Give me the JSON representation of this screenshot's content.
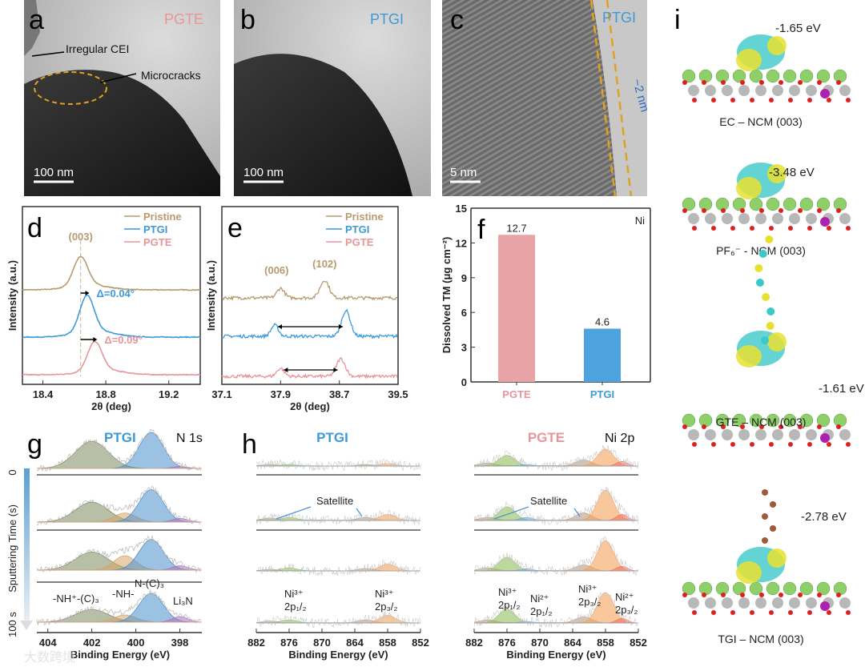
{
  "colors": {
    "pristine": "#b89a6e",
    "ptgi": "#3d9ad9",
    "pgte": "#e8959a",
    "bar_pgte": "#e8a3a6",
    "bar_ptgi": "#4ea3df"
  },
  "panel_a": {
    "letter": "a",
    "sample": "PGTE",
    "annot1": "Irregular CEI",
    "annot2": "Microcracks",
    "scale": "100 nm"
  },
  "panel_b": {
    "letter": "b",
    "sample": "PTGI",
    "scale": "100 nm"
  },
  "panel_c": {
    "letter": "c",
    "sample": "PTGI",
    "thickness": "~2 nm",
    "scale": "5 nm"
  },
  "chart_data": [
    {
      "id": "d",
      "type": "line",
      "letter": "d",
      "xlabel": "2θ (deg)",
      "ylabel": "Intensity (a.u.)",
      "xlim": [
        18.27,
        19.4
      ],
      "xticks": [
        "18.4",
        "18.8",
        "19.2"
      ],
      "xtick_values": [
        18.4,
        18.8,
        19.2
      ],
      "peak_label": "(003)",
      "series": [
        {
          "name": "Pristine",
          "peak": 18.64
        },
        {
          "name": "PTGI",
          "peak": 18.68,
          "shift": "Δ=0.04°"
        },
        {
          "name": "PGTE",
          "peak": 18.73,
          "shift": "Δ=0.09°"
        }
      ]
    },
    {
      "id": "e",
      "type": "line",
      "letter": "e",
      "xlabel": "2θ (deg)",
      "ylabel": "Intensity (a.u.)",
      "xlim": [
        37.1,
        39.5
      ],
      "xticks": [
        "37.1",
        "37.9",
        "38.7",
        "39.5"
      ],
      "xtick_values": [
        37.1,
        37.9,
        38.7,
        39.5
      ],
      "peak_labels": [
        "(006)",
        "(102)"
      ],
      "series": [
        {
          "name": "Pristine",
          "peaks": [
            37.9,
            38.5
          ]
        },
        {
          "name": "PTGI",
          "peaks": [
            37.82,
            38.79
          ]
        },
        {
          "name": "PGTE",
          "peaks": [
            37.9,
            38.72
          ]
        }
      ]
    },
    {
      "id": "f",
      "type": "bar",
      "letter": "f",
      "element": "Ni",
      "ylabel": "Dissolved TM (μg cm⁻²)",
      "ylim": [
        0,
        15
      ],
      "yticks": [
        "0",
        "3",
        "6",
        "9",
        "12",
        "15"
      ],
      "categories": [
        "PGTE",
        "PTGI"
      ],
      "values": [
        12.7,
        4.6
      ],
      "value_labels": [
        "12.7",
        "4.6"
      ]
    },
    {
      "id": "g",
      "type": "area",
      "letter": "g",
      "sample": "PTGI",
      "core": "N 1s",
      "xlabel": "Binding Energy (eV)",
      "xlim": [
        404.5,
        397
      ],
      "xticks": [
        "404",
        "402",
        "400",
        "398"
      ],
      "xtick_values": [
        404,
        402,
        400,
        398
      ],
      "ylabel": "Sputtering Time (s)",
      "time_start": "0",
      "time_end": "100 s",
      "components": [
        {
          "name": "-NH⁺-(C)₃",
          "center": 402.0
        },
        {
          "name": "-NH-",
          "center": 400.5
        },
        {
          "name": "N-(C)₃",
          "center": 399.3
        },
        {
          "name": "Li₃N",
          "center": 398.0
        }
      ],
      "rows": [
        [
          0.75,
          0,
          1.0,
          0.05
        ],
        [
          0.55,
          0.25,
          0.9,
          0.1
        ],
        [
          0.5,
          0.4,
          0.85,
          0.12
        ],
        [
          0.35,
          0.2,
          0.8,
          0.15
        ]
      ]
    },
    {
      "id": "h",
      "type": "area",
      "letter": "h",
      "core": "Ni 2p",
      "xlabel": "Binding Energy (eV)",
      "xlim": [
        882,
        852
      ],
      "xticks": [
        "882",
        "876",
        "870",
        "864",
        "858",
        "852"
      ],
      "xtick_values": [
        882,
        876,
        870,
        864,
        858,
        852
      ],
      "satellite": "Satellite",
      "components": [
        {
          "name": "sat1",
          "center": 879.5
        },
        {
          "name": "Ni3+ 2p1/2",
          "center": 876
        },
        {
          "name": "Ni2+ 2p1/2",
          "center": 872.5
        },
        {
          "name": "sat2",
          "center": 862
        },
        {
          "name": "Ni3+ 2p3/2",
          "center": 858
        },
        {
          "name": "Ni2+ 2p3/2",
          "center": 855
        }
      ],
      "samples": [
        {
          "name": "PTGI",
          "rows": [
            [
              0.05,
              0.05,
              0,
              0.05,
              0.08,
              0
            ],
            [
              0.08,
              0.1,
              0,
              0.1,
              0.2,
              0
            ],
            [
              0.05,
              0.1,
              0,
              0.08,
              0.22,
              0
            ],
            [
              0.06,
              0.1,
              0,
              0.1,
              0.25,
              0
            ]
          ]
        },
        {
          "name": "PGTE",
          "rows": [
            [
              0.1,
              0.35,
              0.05,
              0.2,
              0.55,
              0.15
            ],
            [
              0.1,
              0.45,
              0.1,
              0.25,
              1.0,
              0.2
            ],
            [
              0.1,
              0.45,
              0.07,
              0.2,
              1.0,
              0.15
            ],
            [
              0.1,
              0.45,
              0.05,
              0.2,
              1.0,
              0.15
            ]
          ]
        }
      ],
      "annotations": {
        "ni3_12": [
          "Ni³⁺",
          "2p₁/₂"
        ],
        "ni3_32": [
          "Ni³⁺",
          "2p₃/₂"
        ],
        "ni2_12": [
          "Ni²⁺",
          "2p₁/₂"
        ],
        "ni2_32": [
          "Ni²⁺",
          "2p₃/₂"
        ]
      }
    }
  ],
  "panel_i": {
    "letter": "i",
    "models": [
      {
        "label": "EC – NCM (003)",
        "energy": "-1.65 eV"
      },
      {
        "label": "PF₆⁻ - NCM (003)",
        "energy": "-3.48 eV"
      },
      {
        "label": "GTE – NCM (003)",
        "energy": "-1.61 eV"
      },
      {
        "label": "TGI – NCM (003)",
        "energy": "-2.78 eV"
      }
    ]
  },
  "watermark": "大数跨境"
}
